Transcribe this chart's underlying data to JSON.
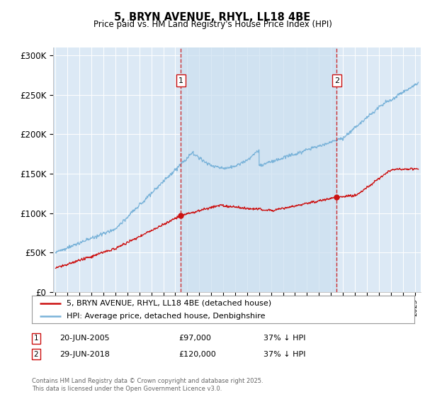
{
  "title": "5, BRYN AVENUE, RHYL, LL18 4BE",
  "subtitle": "Price paid vs. HM Land Registry's House Price Index (HPI)",
  "background_color": "#dce9f5",
  "plot_bg": "#dce9f5",
  "hpi_color": "#7ab3d9",
  "property_color": "#cc1111",
  "vline_color": "#cc1111",
  "fill_color": "#b8d4ed",
  "transaction1_year": 2005.47,
  "transaction1_price": 97000,
  "transaction2_year": 2018.49,
  "transaction2_price": 120000,
  "ylim": [
    0,
    310000
  ],
  "xlim_start": 1994.8,
  "xlim_end": 2025.5,
  "legend_entries": [
    "5, BRYN AVENUE, RHYL, LL18 4BE (detached house)",
    "HPI: Average price, detached house, Denbighshire"
  ],
  "table_rows": [
    {
      "label": "1",
      "date": "20-JUN-2005",
      "price": "£97,000",
      "note": "37% ↓ HPI"
    },
    {
      "label": "2",
      "date": "29-JUN-2018",
      "price": "£120,000",
      "note": "37% ↓ HPI"
    }
  ],
  "footnote": "Contains HM Land Registry data © Crown copyright and database right 2025.\nThis data is licensed under the Open Government Licence v3.0.",
  "yticks": [
    0,
    50000,
    100000,
    150000,
    200000,
    250000,
    300000
  ],
  "ytick_labels": [
    "£0",
    "£50K",
    "£100K",
    "£150K",
    "£200K",
    "£250K",
    "£300K"
  ]
}
